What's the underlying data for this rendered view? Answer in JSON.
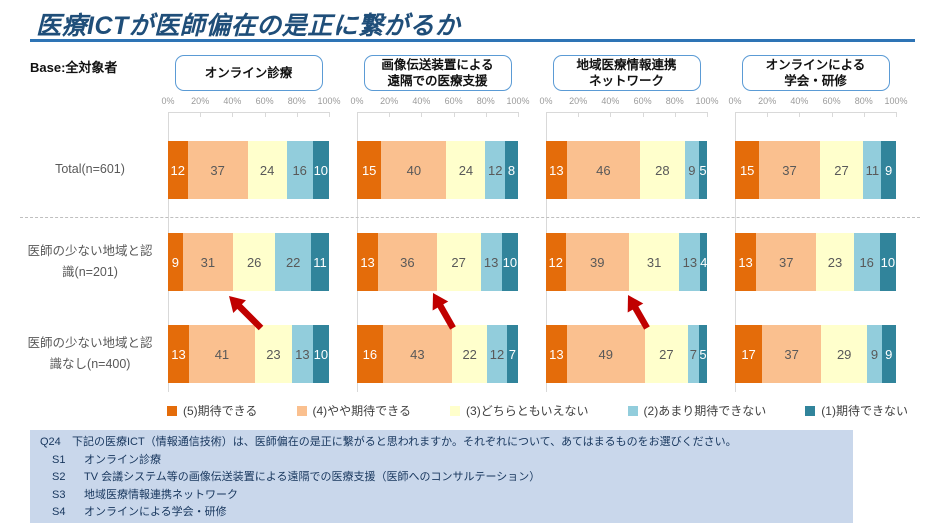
{
  "page": {
    "title": "医療ICTが医師偏在の是正に繋がるか",
    "base_label": "Base:全対象者"
  },
  "colors": {
    "title_text": "#1F4E79",
    "title_rule": "#2E74B5",
    "box_border": "#5B9BD5",
    "arrow": "#C00000",
    "footnote_bg": "#C9D7EB",
    "footnote_text": "#17365D",
    "segments": [
      "#E46C0A",
      "#FAC08F",
      "#FFFFCC",
      "#92CDDC",
      "#31849B"
    ],
    "segment_text": [
      "#FFFFFF",
      "#595959",
      "#595959",
      "#595959",
      "#FFFFFF"
    ]
  },
  "axis": {
    "ticks": [
      "0%",
      "20%",
      "40%",
      "60%",
      "80%",
      "100%"
    ]
  },
  "row_labels": [
    "Total(n=601)",
    "医師の少ない地域と認識(n=201)",
    "医師の少ない地域と認識なし(n=400)"
  ],
  "legend": [
    {
      "label": "(5)期待できる",
      "color": "#E46C0A"
    },
    {
      "label": "(4)やや期待できる",
      "color": "#FAC08F"
    },
    {
      "label": "(3)どちらともいえない",
      "color": "#FFFFCC"
    },
    {
      "label": "(2)あまり期待できない",
      "color": "#92CDDC"
    },
    {
      "label": "(1)期待できない",
      "color": "#31849B"
    }
  ],
  "chart_data": [
    {
      "type": "bar",
      "stacked": true,
      "orientation": "horizontal",
      "title": "オンライン診療",
      "title_lines": [
        "オンライン診療"
      ],
      "unit": "%",
      "xlim": [
        0,
        100
      ],
      "highlight_arrow": true,
      "categories": [
        "Total(n=601)",
        "医師の少ない地域と認識(n=201)",
        "医師の少ない地域と認識なし(n=400)"
      ],
      "series": [
        {
          "name": "(5)期待できる",
          "values": [
            12,
            9,
            13
          ]
        },
        {
          "name": "(4)やや期待できる",
          "values": [
            37,
            31,
            41
          ]
        },
        {
          "name": "(3)どちらともいえない",
          "values": [
            24,
            26,
            23
          ]
        },
        {
          "name": "(2)あまり期待できない",
          "values": [
            16,
            22,
            13
          ]
        },
        {
          "name": "(1)期待できない",
          "values": [
            10,
            11,
            10
          ]
        }
      ]
    },
    {
      "type": "bar",
      "stacked": true,
      "orientation": "horizontal",
      "title": "画像伝送装置による遠隔での医療支援",
      "title_lines": [
        "画像伝送装置による",
        "遠隔での医療支援"
      ],
      "unit": "%",
      "xlim": [
        0,
        100
      ],
      "highlight_arrow": true,
      "categories": [
        "Total(n=601)",
        "医師の少ない地域と認識(n=201)",
        "医師の少ない地域と認識なし(n=400)"
      ],
      "series": [
        {
          "name": "(5)期待できる",
          "values": [
            15,
            13,
            16
          ]
        },
        {
          "name": "(4)やや期待できる",
          "values": [
            40,
            36,
            43
          ]
        },
        {
          "name": "(3)どちらともいえない",
          "values": [
            24,
            27,
            22
          ]
        },
        {
          "name": "(2)あまり期待できない",
          "values": [
            12,
            13,
            12
          ]
        },
        {
          "name": "(1)期待できない",
          "values": [
            8,
            10,
            7
          ]
        }
      ]
    },
    {
      "type": "bar",
      "stacked": true,
      "orientation": "horizontal",
      "title": "地域医療情報連携ネットワーク",
      "title_lines": [
        "地域医療情報連携",
        "ネットワーク"
      ],
      "unit": "%",
      "xlim": [
        0,
        100
      ],
      "highlight_arrow": true,
      "categories": [
        "Total(n=601)",
        "医師の少ない地域と認識(n=201)",
        "医師の少ない地域と認識なし(n=400)"
      ],
      "series": [
        {
          "name": "(5)期待できる",
          "values": [
            13,
            12,
            13
          ]
        },
        {
          "name": "(4)やや期待できる",
          "values": [
            46,
            39,
            49
          ]
        },
        {
          "name": "(3)どちらともいえない",
          "values": [
            28,
            31,
            27
          ]
        },
        {
          "name": "(2)あまり期待できない",
          "values": [
            9,
            13,
            7
          ]
        },
        {
          "name": "(1)期待できない",
          "values": [
            5,
            4,
            5
          ]
        }
      ]
    },
    {
      "type": "bar",
      "stacked": true,
      "orientation": "horizontal",
      "title": "オンラインによる学会・研修",
      "title_lines": [
        "オンラインによる",
        "学会・研修"
      ],
      "unit": "%",
      "xlim": [
        0,
        100
      ],
      "highlight_arrow": false,
      "categories": [
        "Total(n=601)",
        "医師の少ない地域と認識(n=201)",
        "医師の少ない地域と認識なし(n=400)"
      ],
      "series": [
        {
          "name": "(5)期待できる",
          "values": [
            15,
            13,
            17
          ]
        },
        {
          "name": "(4)やや期待できる",
          "values": [
            37,
            37,
            37
          ]
        },
        {
          "name": "(3)どちらともいえない",
          "values": [
            27,
            23,
            29
          ]
        },
        {
          "name": "(2)あまり期待できない",
          "values": [
            11,
            16,
            9
          ]
        },
        {
          "name": "(1)期待できない",
          "values": [
            9,
            10,
            9
          ]
        }
      ]
    }
  ],
  "footnote": {
    "lines": [
      {
        "code": "Q24",
        "text": "下記の医療ICT（情報通信技術）は、医師偏在の是正に繋がると思われますか。それぞれについて、あてはまるものをお選びください。",
        "indent": false
      },
      {
        "code": "S1",
        "text": "オンライン診療",
        "indent": true
      },
      {
        "code": "S2",
        "text": "TV 会議システム等の画像伝送装置による遠隔での医療支援（医師へのコンサルテーション）",
        "indent": true
      },
      {
        "code": "S3",
        "text": "地域医療情報連携ネットワーク",
        "indent": true
      },
      {
        "code": "S4",
        "text": "オンラインによる学会・研修",
        "indent": true
      }
    ]
  }
}
